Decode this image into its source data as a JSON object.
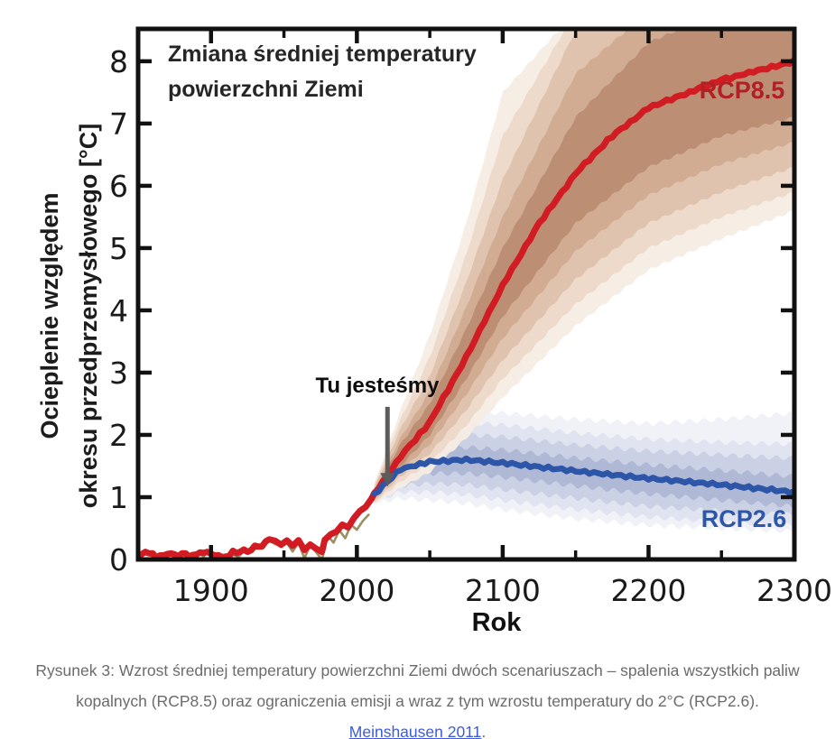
{
  "colors": {
    "rcp85_line": "#d21c23",
    "rcp85_label": "#b02025",
    "rcp26_line": "#2d56a8",
    "rcp26_label": "#2d56a8",
    "observation_line": "#8a7c45",
    "axis": "#111111",
    "tick_label": "#1a1a1a",
    "arrow": "#5c5c5c",
    "caption_text": "#6b6b6b",
    "caption_link": "#3d5cd6",
    "rcp85_bands": [
      "#f6ece4",
      "#ecd9ca",
      "#dfc2ad",
      "#d0ab92",
      "#bb8d72"
    ],
    "rcp26_bands": [
      "#eff1f8",
      "#dfe3f0",
      "#c9d0e4",
      "#aeb8d5",
      "#96a2c8"
    ]
  },
  "chart_data": {
    "type": "line",
    "title": "Zmiana średniej temperatury powierzchni Ziemi",
    "title_line1": "Zmiana średniej temperatury",
    "title_line2": "powierzchni Ziemi",
    "xlabel": "Rok",
    "ylabel": "Ocieplenie względem okresu przedprzemysłowego [°C]",
    "ylabel_line1": "Ocieplenie względem",
    "ylabel_line2": "okresu przedprzemysłowego [°C]",
    "xlim": [
      1850,
      2300
    ],
    "ylim": [
      0,
      8.52
    ],
    "grid": false,
    "legend_position": "inline-labels",
    "x_ticks": {
      "major": [
        1900,
        2000,
        2100,
        2200,
        2300
      ],
      "minor": [
        1950,
        2050,
        2150,
        2250
      ],
      "labels": [
        "1900",
        "2000",
        "2100",
        "2200",
        "2300"
      ]
    },
    "y_ticks": {
      "major": [
        0,
        1,
        2,
        3,
        4,
        5,
        6,
        7,
        8
      ],
      "labels": [
        "0",
        "1",
        "2",
        "3",
        "4",
        "5",
        "6",
        "7",
        "8"
      ]
    },
    "series_labels": {
      "rcp85": "RCP8.5",
      "rcp26": "RCP2.6"
    },
    "annotation": {
      "text": "Tu jesteśmy",
      "year": 2021,
      "tail_value": 2.45,
      "tip_value": 1.17
    },
    "series": [
      {
        "name": "observations",
        "x": [
          1850,
          1856,
          1862,
          1868,
          1874,
          1880,
          1886,
          1892,
          1898,
          1904,
          1910,
          1916,
          1922,
          1928,
          1934,
          1940,
          1944,
          1948,
          1952,
          1956,
          1960,
          1964,
          1968,
          1972,
          1976,
          1980,
          1984,
          1988,
          1992,
          1996,
          2000,
          2004,
          2008
        ],
        "values": [
          0.03,
          0.1,
          0.02,
          0.08,
          0.0,
          0.07,
          0.0,
          0.06,
          0.1,
          0.02,
          0.0,
          0.06,
          0.1,
          0.14,
          0.2,
          0.28,
          0.26,
          0.18,
          0.26,
          0.14,
          0.24,
          0.05,
          0.2,
          0.1,
          0.03,
          0.35,
          0.28,
          0.45,
          0.35,
          0.55,
          0.5,
          0.62,
          0.72
        ]
      },
      {
        "name": "RCP8.5",
        "x": [
          1850,
          1855,
          1860,
          1865,
          1870,
          1875,
          1880,
          1885,
          1890,
          1895,
          1900,
          1905,
          1910,
          1915,
          1920,
          1925,
          1930,
          1935,
          1940,
          1944,
          1948,
          1952,
          1956,
          1960,
          1964,
          1968,
          1972,
          1976,
          1978,
          1982,
          1986,
          1990,
          1994,
          1998,
          2002,
          2006,
          2010,
          2012,
          2030,
          2050,
          2075,
          2100,
          2125,
          2150,
          2175,
          2200,
          2250,
          2300
        ],
        "values": [
          0.07,
          0.12,
          0.08,
          0.03,
          0.1,
          0.06,
          0.1,
          0.04,
          0.08,
          0.12,
          0.09,
          0.05,
          0.04,
          0.1,
          0.12,
          0.15,
          0.2,
          0.25,
          0.3,
          0.32,
          0.25,
          0.3,
          0.2,
          0.3,
          0.12,
          0.25,
          0.18,
          0.12,
          0.3,
          0.4,
          0.45,
          0.55,
          0.5,
          0.68,
          0.75,
          0.85,
          0.95,
          1.05,
          1.65,
          2.2,
          3.25,
          4.4,
          5.4,
          6.2,
          6.8,
          7.25,
          7.7,
          8.0
        ]
      },
      {
        "name": "RCP2.6",
        "x": [
          2012,
          2030,
          2050,
          2075,
          2100,
          2150,
          2200,
          2250,
          2300
        ],
        "values": [
          1.05,
          1.45,
          1.57,
          1.6,
          1.55,
          1.42,
          1.3,
          1.2,
          1.08
        ]
      }
    ],
    "bands": [
      {
        "series": "RCP8.5",
        "x": [
          2012,
          2030,
          2050,
          2075,
          2100,
          2150,
          2200,
          2250,
          2300
        ],
        "levels": [
          {
            "lower": [
              0.88,
              1.15,
              1.4,
              1.95,
              2.6,
              3.75,
              4.65,
              5.15,
              5.6
            ],
            "upper": [
              1.22,
              2.4,
              3.6,
              5.4,
              7.5,
              8.8,
              8.8,
              8.8,
              8.8
            ]
          },
          {
            "lower": [
              0.91,
              1.25,
              1.55,
              2.15,
              2.9,
              4.1,
              5.0,
              5.5,
              5.9
            ],
            "upper": [
              1.19,
              2.25,
              3.25,
              4.9,
              6.8,
              8.8,
              8.8,
              8.8,
              8.8
            ]
          },
          {
            "lower": [
              0.94,
              1.33,
              1.7,
              2.4,
              3.2,
              4.5,
              5.4,
              5.9,
              6.3
            ],
            "upper": [
              1.16,
              2.1,
              2.95,
              4.45,
              6.1,
              8.5,
              8.8,
              8.8,
              8.8
            ]
          },
          {
            "lower": [
              0.97,
              1.42,
              1.85,
              2.65,
              3.55,
              4.95,
              5.85,
              6.35,
              6.7
            ],
            "upper": [
              1.13,
              1.95,
              2.7,
              4.05,
              5.5,
              7.8,
              8.8,
              8.8,
              8.8
            ]
          },
          {
            "lower": [
              1.0,
              1.5,
              2.0,
              2.9,
              3.9,
              5.4,
              6.3,
              6.8,
              7.1
            ],
            "upper": [
              1.1,
              1.85,
              2.5,
              3.7,
              5.0,
              7.1,
              8.3,
              8.8,
              8.8
            ]
          }
        ]
      },
      {
        "series": "RCP2.6",
        "x": [
          2012,
          2030,
          2050,
          2075,
          2100,
          2150,
          2200,
          2250,
          2300
        ],
        "levels": [
          {
            "lower": [
              0.91,
              0.98,
              0.95,
              0.9,
              0.8,
              0.65,
              0.55,
              0.5,
              0.45
            ],
            "upper": [
              1.19,
              1.96,
              2.3,
              2.38,
              2.35,
              2.25,
              2.18,
              2.25,
              2.35
            ]
          },
          {
            "lower": [
              0.94,
              1.08,
              1.08,
              1.04,
              0.95,
              0.8,
              0.68,
              0.6,
              0.55
            ],
            "upper": [
              1.16,
              1.84,
              2.12,
              2.2,
              2.16,
              2.03,
              1.93,
              1.88,
              1.85
            ]
          },
          {
            "lower": [
              0.97,
              1.18,
              1.22,
              1.2,
              1.12,
              0.98,
              0.85,
              0.78,
              0.72
            ],
            "upper": [
              1.13,
              1.72,
              1.95,
              2.0,
              1.97,
              1.84,
              1.74,
              1.68,
              1.62
            ]
          },
          {
            "lower": [
              1.0,
              1.3,
              1.38,
              1.38,
              1.32,
              1.18,
              1.05,
              0.95,
              0.85
            ],
            "upper": [
              1.1,
              1.6,
              1.76,
              1.8,
              1.76,
              1.63,
              1.52,
              1.43,
              1.33
            ]
          }
        ]
      }
    ]
  },
  "caption": {
    "text": "Rysunek 3: Wzrost średniej temperatury powierzchni Ziemi dwóch scenariuszach – spalenia wszystkich paliw kopalnych (RCP8.5) oraz ograniczenia emisji a wraz z tym wzrostu temperatury do 2°C (RCP2.6). ",
    "link_text": "Meinshausen 2011",
    "suffix": "."
  }
}
